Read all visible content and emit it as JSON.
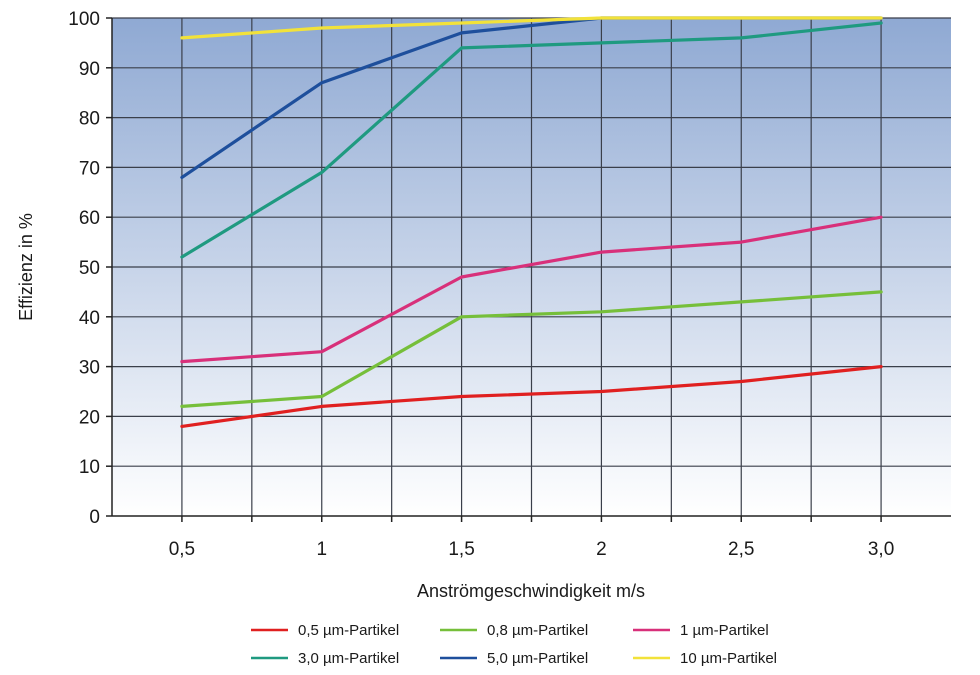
{
  "chart_data": {
    "type": "line",
    "xlabel": "Anströmgeschwindigkeit m/s",
    "ylabel": "Effizienz in %",
    "x": [
      0.5,
      1.0,
      1.5,
      2.0,
      2.5,
      3.0
    ],
    "x_tick_labels": [
      "0,5",
      "1",
      "1,5",
      "2",
      "2,5",
      "3,0"
    ],
    "y_ticks": [
      0,
      10,
      20,
      30,
      40,
      50,
      60,
      70,
      80,
      90,
      100
    ],
    "xlim": [
      0.25,
      3.25
    ],
    "ylim": [
      0,
      100
    ],
    "grid": true,
    "legend_position": "bottom",
    "background_gradient": [
      "#8fa9d3",
      "#ffffff"
    ],
    "series": [
      {
        "name": "0,5 µm-Partikel",
        "color": "#e02020",
        "values": [
          18,
          22,
          24,
          25,
          27,
          30
        ]
      },
      {
        "name": "0,8 µm-Partikel",
        "color": "#76bf3a",
        "values": [
          22,
          24,
          40,
          41,
          43,
          45
        ]
      },
      {
        "name": "1 µm-Partikel",
        "color": "#d8307a",
        "values": [
          31,
          33,
          48,
          53,
          55,
          60
        ]
      },
      {
        "name": "3,0 µm-Partikel",
        "color": "#1f9a80",
        "values": [
          52,
          69,
          94,
          95,
          96,
          99
        ]
      },
      {
        "name": "5,0 µm-Partikel",
        "color": "#1e4f9c",
        "values": [
          68,
          87,
          97,
          100,
          100,
          100
        ]
      },
      {
        "name": "10 µm-Partikel",
        "color": "#f2e23a",
        "values": [
          96,
          98,
          99,
          100,
          100,
          100
        ]
      }
    ]
  }
}
